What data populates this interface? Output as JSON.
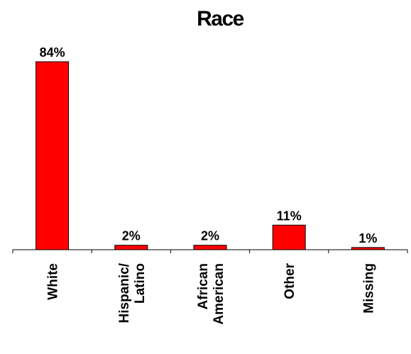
{
  "chart_data": {
    "type": "bar",
    "title": "Race",
    "categories": [
      [
        "White"
      ],
      [
        "Hispanic/",
        "Latino"
      ],
      [
        "African",
        "American"
      ],
      [
        "Other"
      ],
      [
        "Missing"
      ]
    ],
    "values": [
      84,
      2,
      2,
      11,
      1
    ],
    "data_labels": [
      "84%",
      "2%",
      "2%",
      "11%",
      "1%"
    ],
    "unit": "%",
    "ylim": [
      0,
      84
    ],
    "xlabel": "",
    "ylabel": "",
    "grid": false,
    "legend": "none",
    "bar_color": "#ff0000",
    "bar_outline_color": "#000000",
    "axis_color": "#000000"
  }
}
